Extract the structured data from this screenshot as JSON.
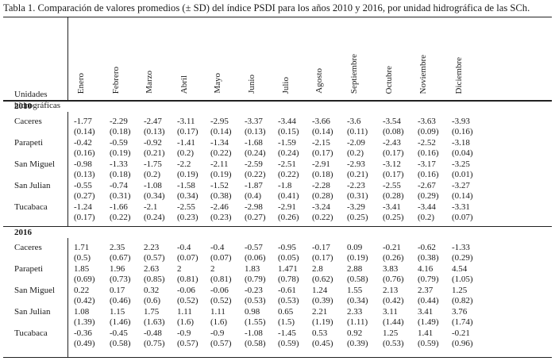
{
  "caption": "Tabla 1. Comparación de valores promedios (± SD) del índice PSDI para los años 2010 y 2016, por unidad hidrográfica de las SCh.",
  "row_header": [
    "Unidades",
    "hidrográficas"
  ],
  "months": [
    "Enero",
    "Febrero",
    "Marzo",
    "Abril",
    "Mayo",
    "Junio",
    "Julio",
    "Agosto",
    "Septiembre",
    "Octubre",
    "Noviembre",
    "Diciembre"
  ],
  "groups": [
    {
      "year": "2010",
      "rows": [
        {
          "name": "Caceres",
          "mean": [
            "-1.77",
            "-2.29",
            "-2.47",
            "-3.11",
            "-2.95",
            "-3.37",
            "-3.44",
            "-3.66",
            "-3.6",
            "-3.54",
            "-3.63",
            "-3.93"
          ],
          "sd": [
            "(0.14)",
            "(0.18)",
            "(0.13)",
            "(0.17)",
            "(0.14)",
            "(0.13)",
            "(0.15)",
            "(0.14)",
            "(0.11)",
            "(0.08)",
            "(0.09)",
            "(0.16)"
          ]
        },
        {
          "name": "Parapeti",
          "mean": [
            "-0.42",
            "-0.59",
            "-0.92",
            "-1.41",
            "-1.34",
            "-1.68",
            "-1.59",
            "-2.15",
            "-2.09",
            "-2.43",
            "-2.52",
            "-3.18"
          ],
          "sd": [
            "(0.16)",
            "(0.19)",
            "(0.21)",
            "(0.2)",
            "(0.22)",
            "(0.24)",
            "(0.24)",
            "(0.17)",
            "(0.2)",
            "(0.17)",
            "(0.16)",
            "(0.04)"
          ]
        },
        {
          "name": "San Miguel",
          "mean": [
            "-0.98",
            "-1.33",
            "-1.75",
            "-2.2",
            "-2.11",
            "-2.59",
            "-2.51",
            "-2.91",
            "-2.93",
            "-3.12",
            "-3.17",
            "-3.25"
          ],
          "sd": [
            "(0.13)",
            "(0.18)",
            "(0.2)",
            "(0.19)",
            "(0.19)",
            "(0.22)",
            "(0.22)",
            "(0.18)",
            "(0.21)",
            "(0.17)",
            "(0.16)",
            "(0.01)"
          ]
        },
        {
          "name": "San Julian",
          "mean": [
            "-0.55",
            "-0.74",
            "-1.08",
            "-1.58",
            "-1.52",
            "-1.87",
            "-1.8",
            "-2.28",
            "-2.23",
            "-2.55",
            "-2.67",
            "-3.27"
          ],
          "sd": [
            "(0.27)",
            "(0.31)",
            "(0.34)",
            "(0.34)",
            "(0.38)",
            "(0.4)",
            "(0.41)",
            "(0.28)",
            "(0.31)",
            "(0.28)",
            "(0.29)",
            "(0.14)"
          ]
        },
        {
          "name": "Tucabaca",
          "mean": [
            "-1.24",
            "-1.66",
            "-2.1",
            "-2.55",
            "-2.46",
            "-2.98",
            "-2.91",
            "-3.24",
            "-3.29",
            "-3.41",
            "-3.44",
            "-3.31"
          ],
          "sd": [
            "(0.17)",
            "(0.22)",
            "(0.24)",
            "(0.23)",
            "(0.23)",
            "(0.27)",
            "(0.26)",
            "(0.22)",
            "(0.25)",
            "(0.25)",
            "(0.2)",
            "(0.07)"
          ]
        }
      ]
    },
    {
      "year": "2016",
      "rows": [
        {
          "name": "Caceres",
          "mean": [
            "1.71",
            "2.35",
            "2.23",
            "-0.4",
            "-0.4",
            "-0.57",
            "-0.95",
            "-0.17",
            "0.09",
            "-0.21",
            "-0.62",
            "-1.33"
          ],
          "sd": [
            "(0.5)",
            "(0.67)",
            "(0.57)",
            "(0.07)",
            "(0.07)",
            "(0.06)",
            "(0.05)",
            "(0.17)",
            "(0.19)",
            "(0.26)",
            "(0.38)",
            "(0.29)"
          ]
        },
        {
          "name": "Parapeti",
          "mean": [
            "1.85",
            "1.96",
            "2.63",
            "2",
            "2",
            "1.83",
            "1.471",
            "2.8",
            "2.88",
            "3.83",
            "4.16",
            "4.54"
          ],
          "sd": [
            "(0.69)",
            "(0.73)",
            "(0.85)",
            "(0.81)",
            "(0.81)",
            "(0.79)",
            "(0.78)",
            "(0.62)",
            "(0.58)",
            "(0.76)",
            "(0.79)",
            "(1.05)"
          ]
        },
        {
          "name": "San Miguel",
          "mean": [
            "0.22",
            "0.17",
            "0.32",
            "-0.06",
            "-0.06",
            "-0.23",
            "-0.61",
            "1.24",
            "1.55",
            "2.13",
            "2.37",
            "1.25"
          ],
          "sd": [
            "(0.42)",
            "(0.46)",
            "(0.6)",
            "(0.52)",
            "(0.52)",
            "(0.53)",
            "(0.53)",
            "(0.39)",
            "(0.34)",
            "(0.42)",
            "(0.44)",
            "(0.82)"
          ]
        },
        {
          "name": "San Julian",
          "mean": [
            "1.08",
            "1.15",
            "1.75",
            "1.11",
            "1.11",
            "0.98",
            "0.65",
            "2.21",
            "2.33",
            "3.11",
            "3.41",
            "3.76"
          ],
          "sd": [
            "(1.39)",
            "(1.46)",
            "(1.63)",
            "(1.6)",
            "(1.6)",
            "(1.55)",
            "(1.5)",
            "(1.19)",
            "(1.11)",
            "(1.44)",
            "(1.49)",
            "(1.74)"
          ]
        },
        {
          "name": "Tucabaca",
          "mean": [
            "-0.36",
            "-0.45",
            "-0.48",
            "-0.9",
            "-0.9",
            "-1.08",
            "-1.45",
            "0.53",
            "0.92",
            "1.25",
            "1.41",
            "-0.21"
          ],
          "sd": [
            "(0.49)",
            "(0.58)",
            "(0.75)",
            "(0.57)",
            "(0.57)",
            "(0.58)",
            "(0.59)",
            "(0.45)",
            "(0.39)",
            "(0.53)",
            "(0.59)",
            "(0.96)"
          ]
        }
      ]
    }
  ]
}
